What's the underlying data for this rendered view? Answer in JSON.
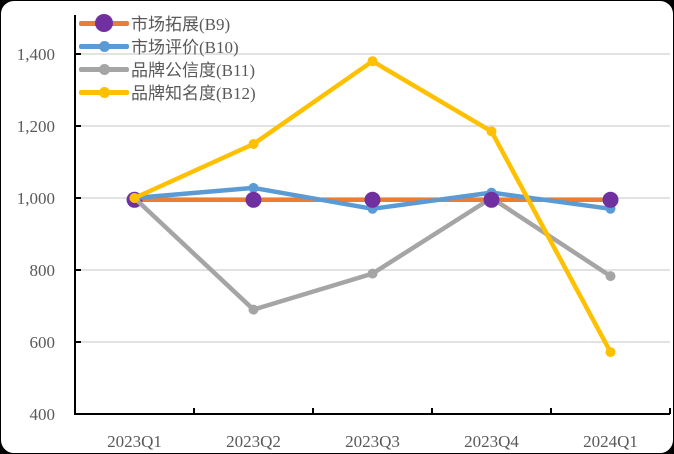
{
  "chart_data": {
    "type": "line",
    "title": "",
    "xlabel": "",
    "ylabel": "",
    "categories": [
      "2023Q1",
      "2023Q2",
      "2023Q3",
      "2023Q4",
      "2024Q1"
    ],
    "ylim": [
      400,
      1500
    ],
    "yticks": [
      400,
      600,
      800,
      1000,
      1200,
      1400
    ],
    "ytick_labels": [
      "400",
      "600",
      "800",
      "1,000",
      "1,200",
      "1,400"
    ],
    "grid": true,
    "legend_position": "top-left inside",
    "series": [
      {
        "name": "市场拓展(B9)",
        "color": "#ED7D31",
        "marker_color": "#7030A0",
        "marker_size": 8,
        "values": [
          995,
          995,
          995,
          995,
          995
        ]
      },
      {
        "name": "市场评价(B10)",
        "color": "#5B9BD5",
        "marker_color": "#5B9BD5",
        "marker_size": 5,
        "values": [
          1000,
          1028,
          970,
          1015,
          970
        ]
      },
      {
        "name": "品牌公信度(B11)",
        "color": "#A5A5A5",
        "marker_color": "#A5A5A5",
        "marker_size": 5,
        "values": [
          1000,
          690,
          790,
          1000,
          783
        ]
      },
      {
        "name": "品牌知名度(B12)",
        "color": "#FFC000",
        "marker_color": "#FFC000",
        "marker_size": 5,
        "values": [
          1000,
          1150,
          1380,
          1185,
          572
        ]
      }
    ]
  }
}
